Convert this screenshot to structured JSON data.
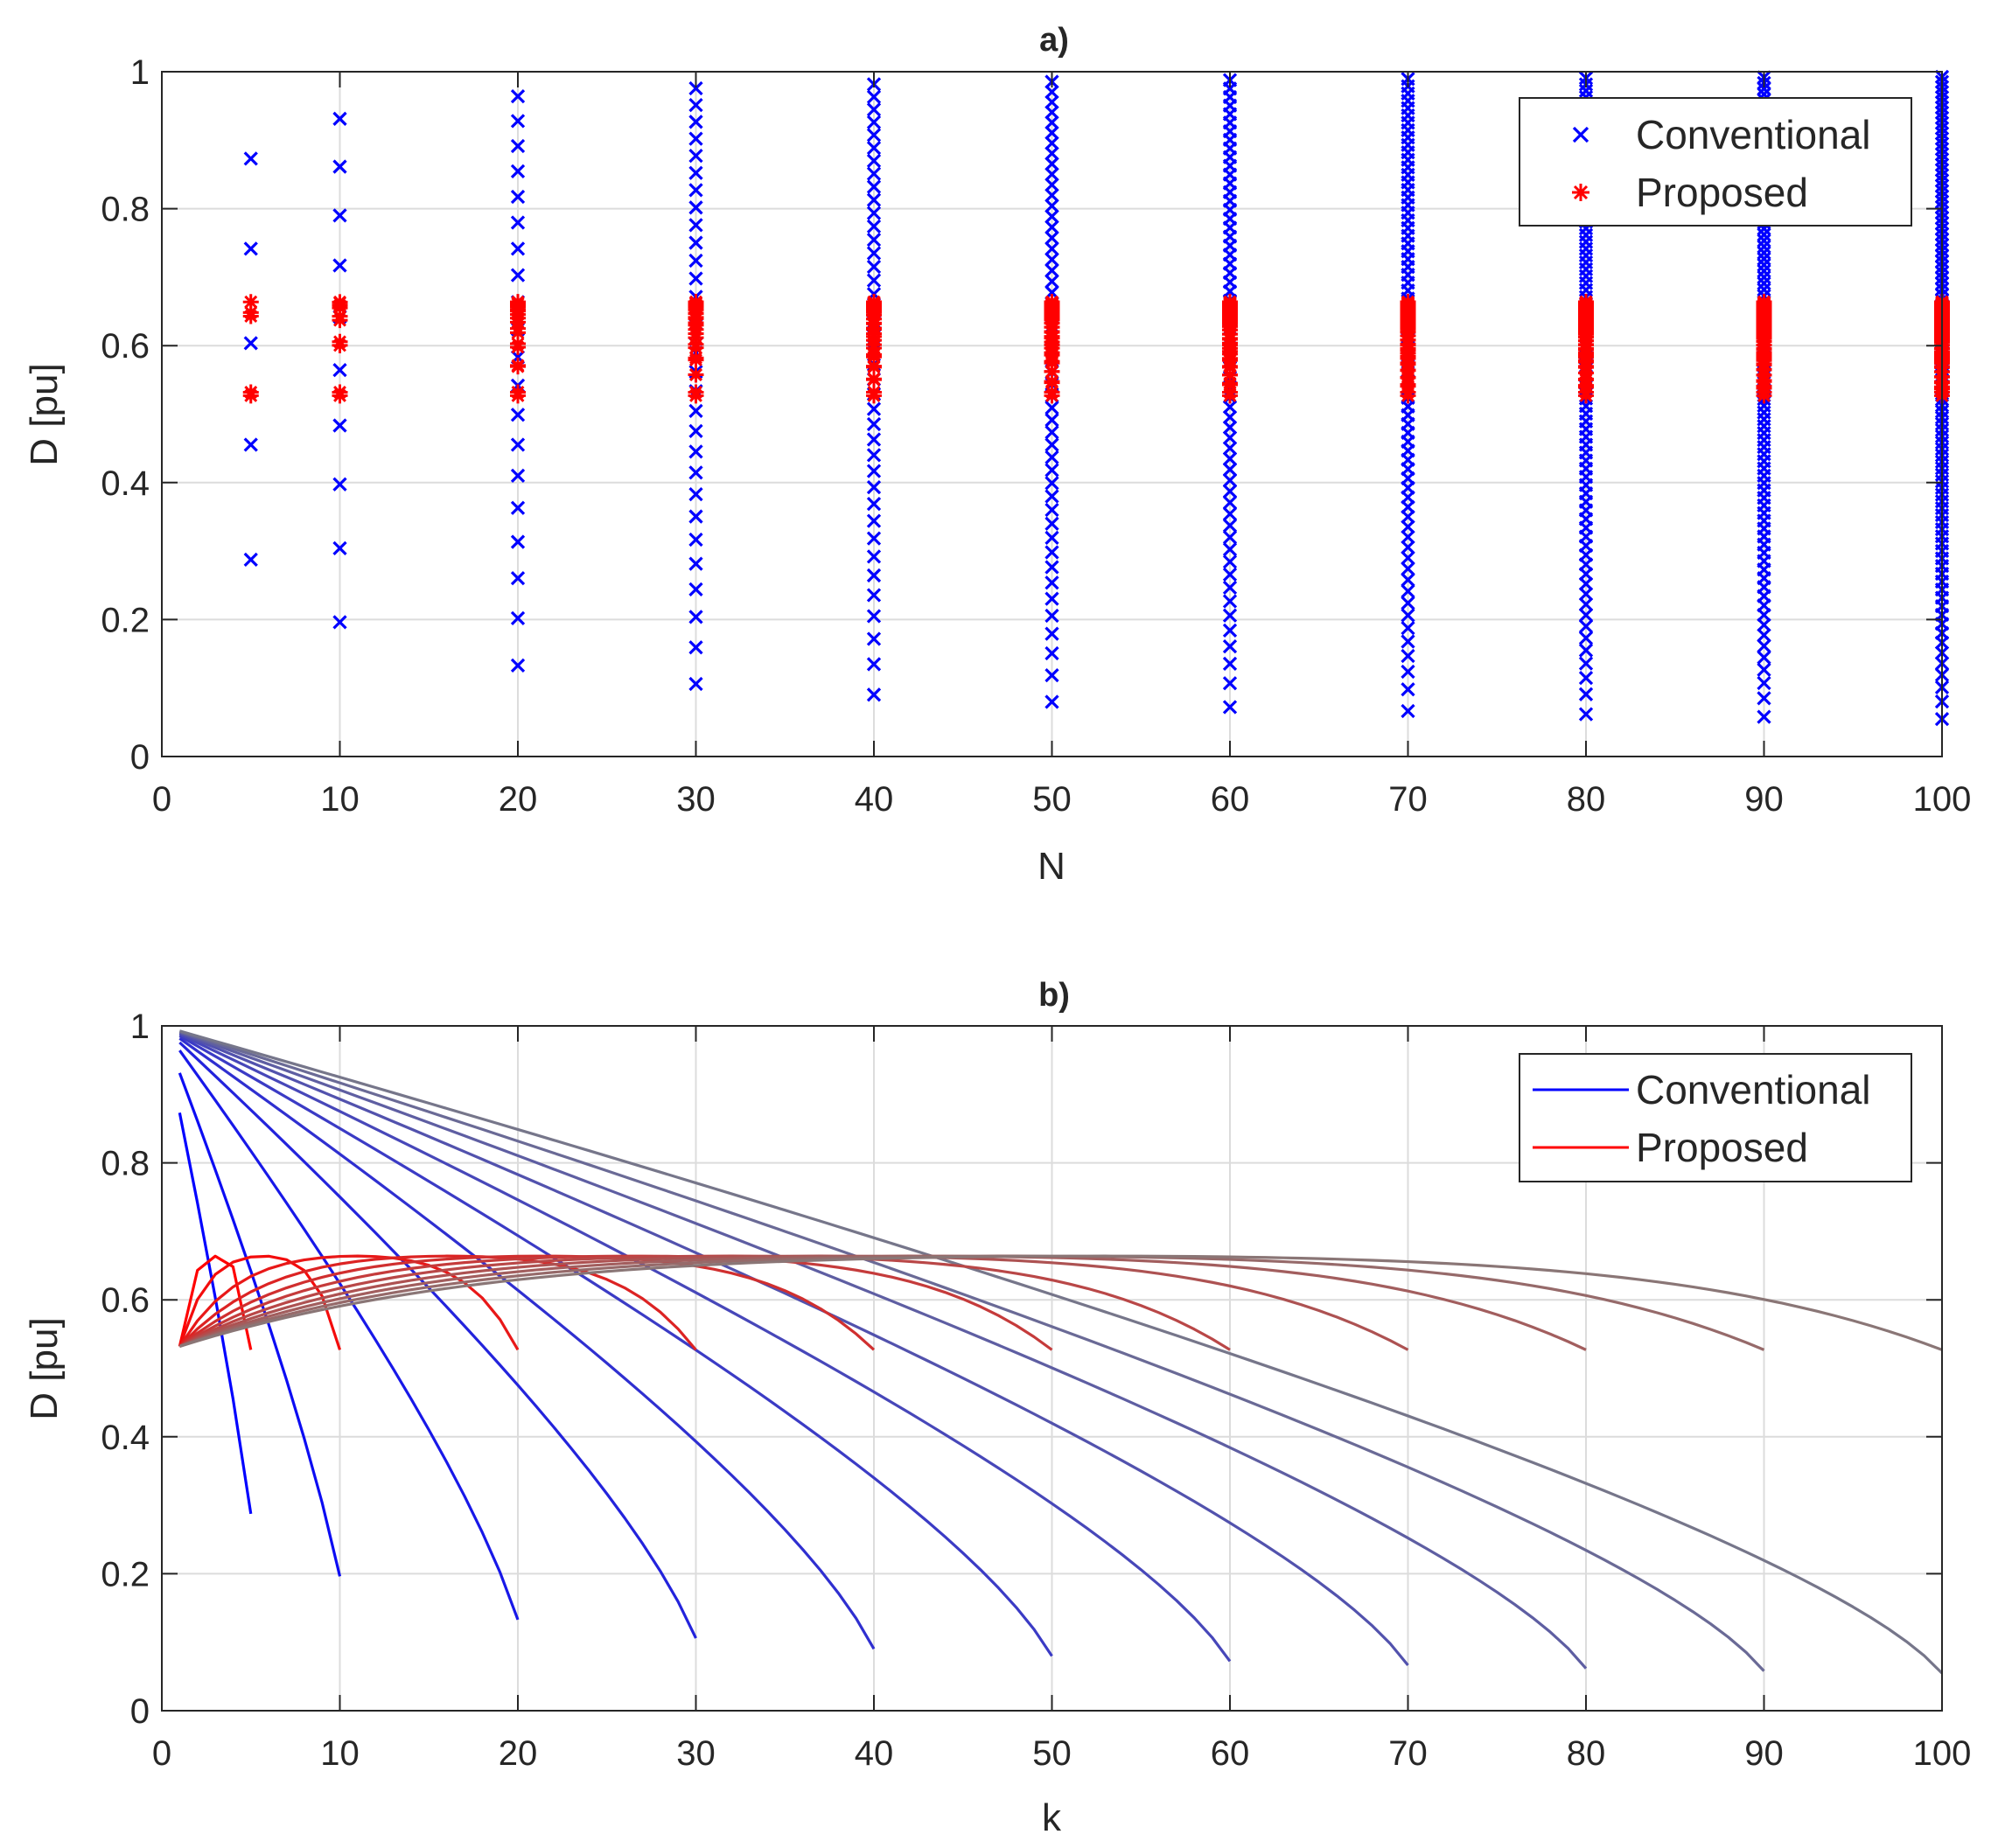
{
  "chart_data": [
    {
      "id": "a",
      "type": "scatter",
      "title": "a)",
      "xlabel": "N",
      "ylabel": "D [pu]",
      "xlim": [
        0,
        100
      ],
      "ylim": [
        0,
        1
      ],
      "xticks": [
        "0",
        "10",
        "20",
        "30",
        "40",
        "50",
        "60",
        "70",
        "80",
        "90",
        "100"
      ],
      "yticks": [
        "0",
        "0.2",
        "0.4",
        "0.6",
        "0.8",
        "1"
      ],
      "grid": true,
      "legend_location": "top-right",
      "N_values": [
        5,
        10,
        20,
        30,
        40,
        50,
        60,
        70,
        80,
        90,
        100
      ],
      "series": [
        {
          "name": "Conventional",
          "marker": "x",
          "color": "#0000ff",
          "model": "conventional"
        },
        {
          "name": "Proposed",
          "marker": "asterisk",
          "color": "#ff0000",
          "model": "proposed"
        }
      ]
    },
    {
      "id": "b",
      "type": "line",
      "title": "b)",
      "xlabel": "k",
      "ylabel": "D [pu]",
      "xlim": [
        0,
        100
      ],
      "ylim": [
        0,
        1
      ],
      "xticks": [
        "0",
        "10",
        "20",
        "30",
        "40",
        "50",
        "60",
        "70",
        "80",
        "90",
        "100"
      ],
      "yticks": [
        "0",
        "0.2",
        "0.4",
        "0.6",
        "0.8",
        "1"
      ],
      "grid": true,
      "legend_location": "top-right",
      "N_values": [
        5,
        10,
        20,
        30,
        40,
        50,
        60,
        70,
        80,
        90,
        100
      ],
      "series": [
        {
          "name": "Conventional",
          "color": "#0000ff",
          "color_end": "#808080",
          "model": "conventional"
        },
        {
          "name": "Proposed",
          "color": "#ff0000",
          "color_end": "#808080",
          "model": "proposed"
        }
      ]
    }
  ]
}
